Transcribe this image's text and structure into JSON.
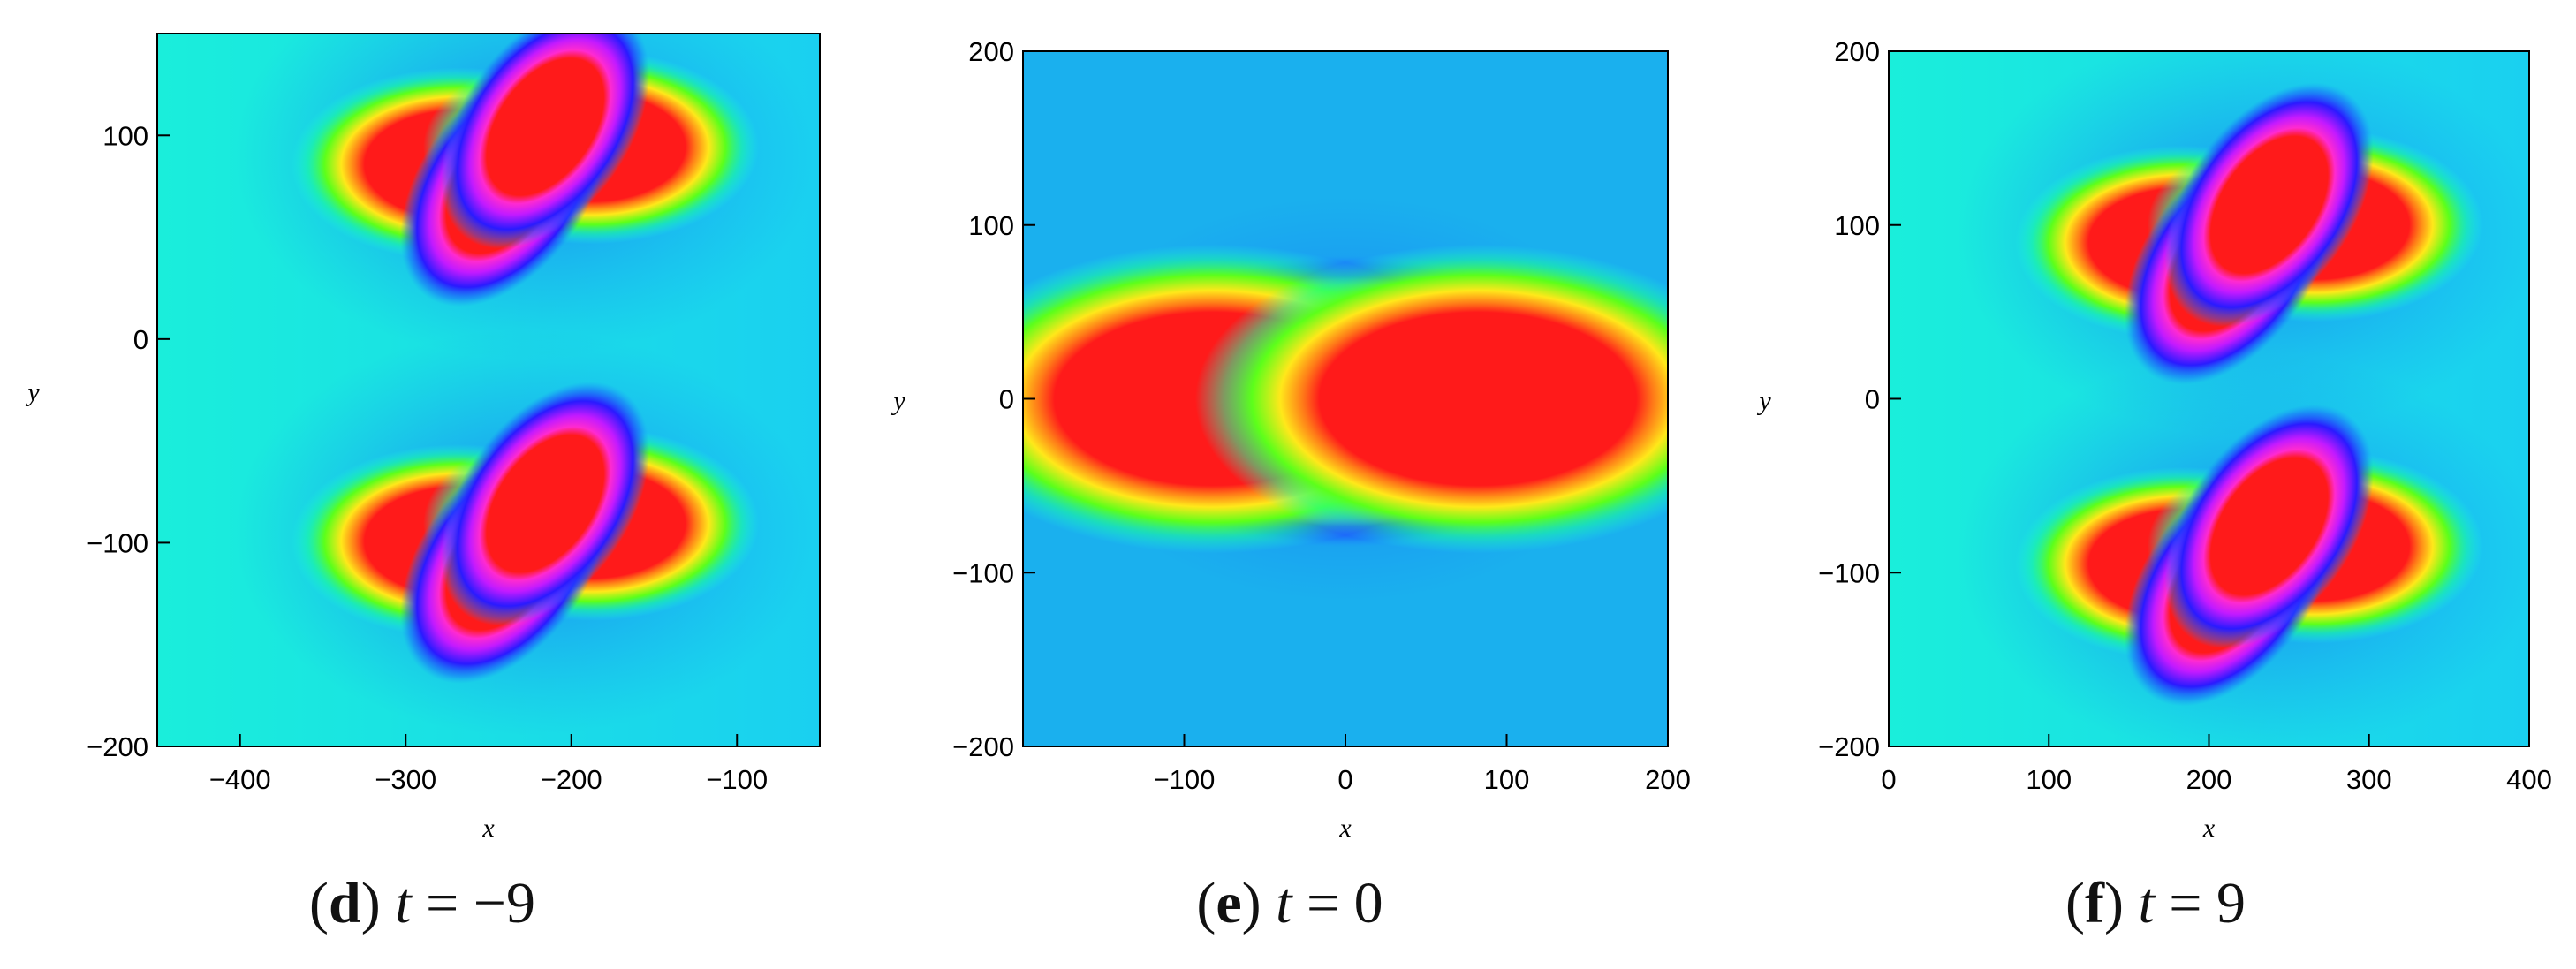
{
  "chart_data": [
    {
      "type": "heatmap",
      "panel_letter": "d",
      "caption_var": "t",
      "caption_eq": "=",
      "caption_value": "−9",
      "xlabel": "x",
      "ylabel": "y",
      "xlim": [
        -450,
        -50
      ],
      "ylim": [
        -200,
        150
      ],
      "x_ticks": [
        -400,
        -300,
        -200,
        -100
      ],
      "y_ticks": [
        -200,
        -100,
        0,
        100
      ],
      "x_tick_labels": [
        "−400",
        "−300",
        "−200",
        "−100"
      ],
      "y_tick_labels": [
        "−200",
        "−100",
        "0",
        "100"
      ],
      "background_color": "#1ad8ec",
      "cores": [
        {
          "x": -228,
          "y": 90,
          "lobes": "tilted"
        },
        {
          "x": -228,
          "y": -95,
          "lobes": "tilted"
        }
      ]
    },
    {
      "type": "heatmap",
      "panel_letter": "e",
      "caption_var": "t",
      "caption_eq": "=",
      "caption_value": "0",
      "xlabel": "x",
      "ylabel": "y",
      "xlim": [
        -200,
        200
      ],
      "ylim": [
        -200,
        200
      ],
      "x_ticks": [
        -100,
        0,
        100,
        200
      ],
      "y_ticks": [
        -200,
        -100,
        0,
        100,
        200
      ],
      "x_tick_labels": [
        "−100",
        "0",
        "100",
        "200"
      ],
      "y_tick_labels": [
        "−200",
        "−100",
        "0",
        "100",
        "200"
      ],
      "background_color": "#1aaeee",
      "cores": [
        {
          "x": 0,
          "y": 0,
          "lobes": "merged"
        }
      ]
    },
    {
      "type": "heatmap",
      "panel_letter": "f",
      "caption_var": "t",
      "caption_eq": "=",
      "caption_value": "9",
      "xlabel": "x",
      "ylabel": "y",
      "xlim": [
        0,
        400
      ],
      "ylim": [
        -200,
        200
      ],
      "x_ticks": [
        0,
        100,
        200,
        300,
        400
      ],
      "y_ticks": [
        -200,
        -100,
        0,
        100,
        200
      ],
      "x_tick_labels": [
        "0",
        "100",
        "200",
        "300",
        "400"
      ],
      "y_tick_labels": [
        "−200",
        "−100",
        "0",
        "100",
        "200"
      ],
      "background_color": "#1ad8ec",
      "cores": [
        {
          "x": 225,
          "y": 95,
          "lobes": "tilted"
        },
        {
          "x": 225,
          "y": -90,
          "lobes": "tilted"
        }
      ]
    }
  ]
}
